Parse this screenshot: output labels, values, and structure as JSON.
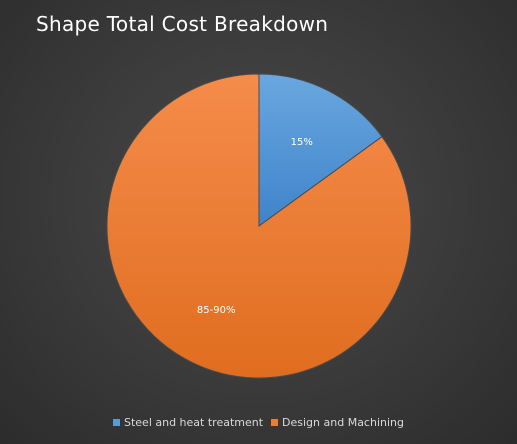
{
  "chart_data": {
    "type": "pie",
    "title": "Shape Total Cost Breakdown",
    "start_angle_deg": 0,
    "direction": "clockwise",
    "legend_position": "bottom",
    "slices": [
      {
        "name": "Steel and heat treatment",
        "value": 15,
        "label": "15%",
        "color": "#5b9bd5"
      },
      {
        "name": "Design and Machining",
        "value": 85,
        "label": "85-90%",
        "color": "#ed7d31"
      }
    ]
  }
}
